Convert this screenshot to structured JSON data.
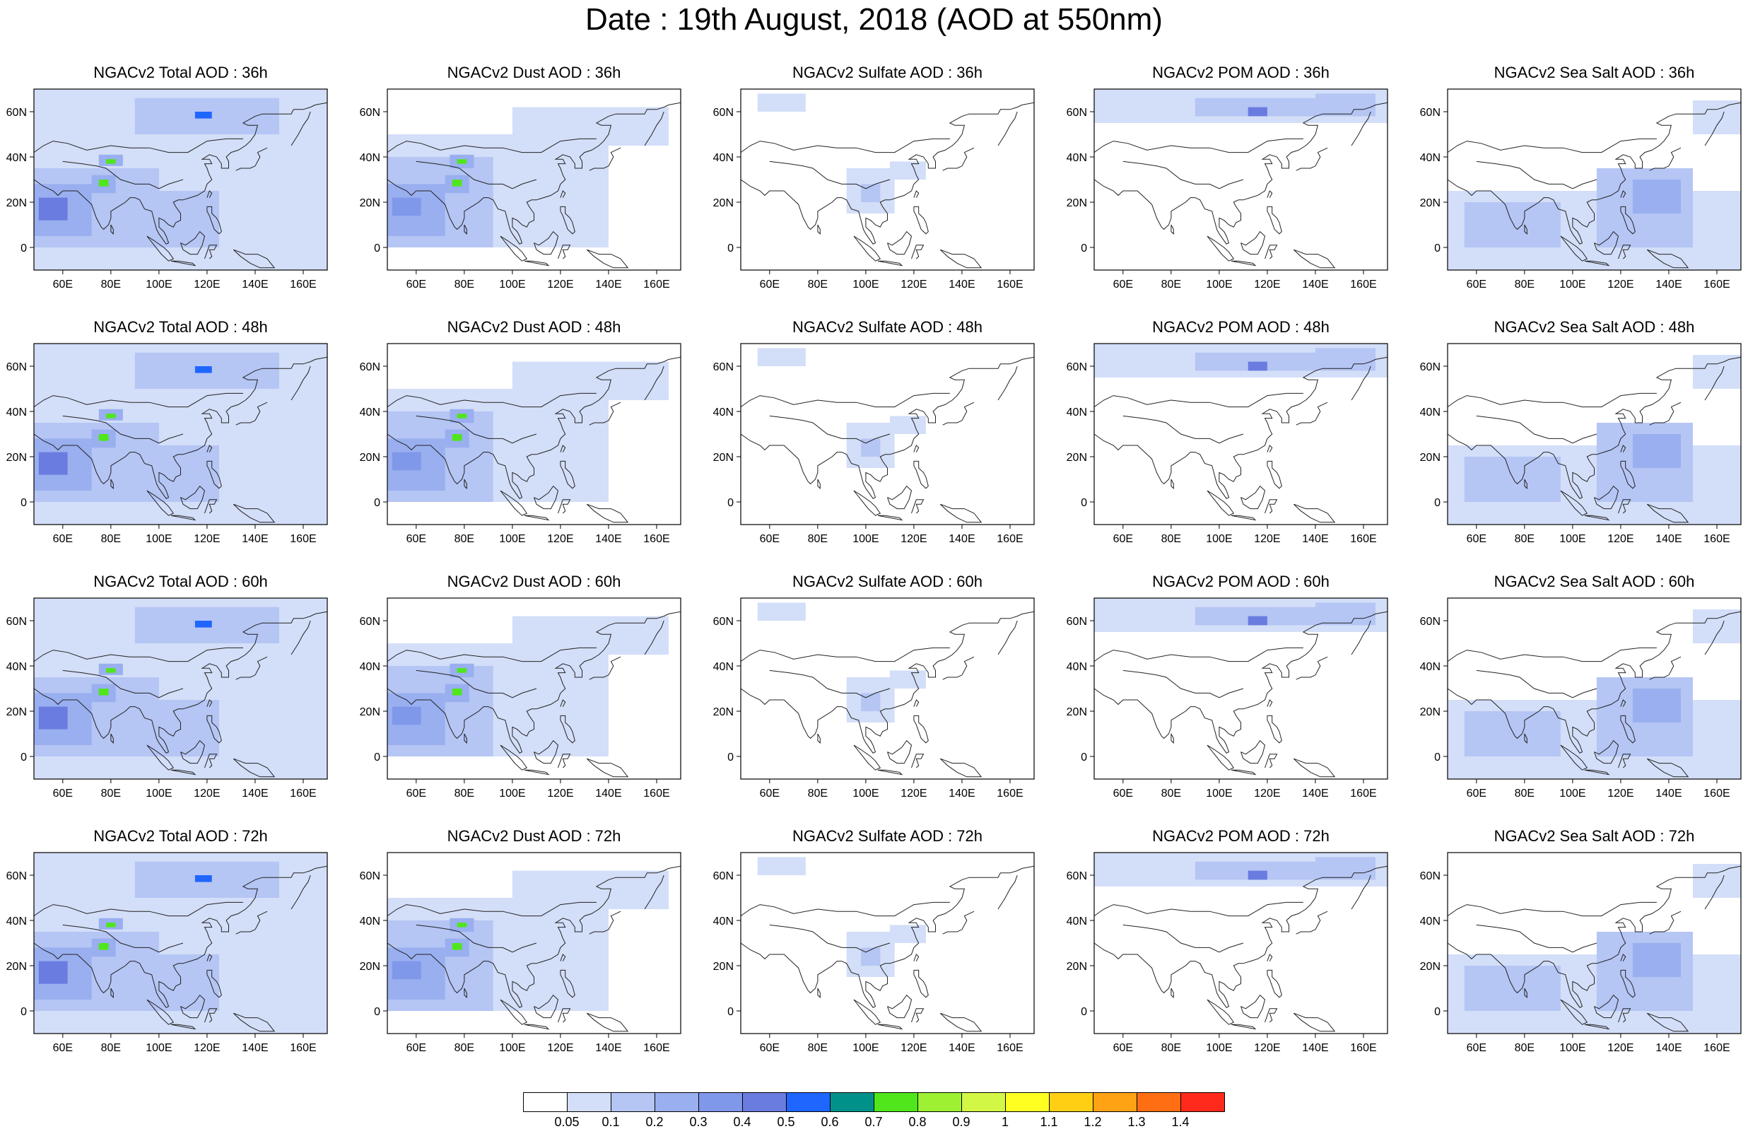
{
  "title": "Date : 19th August, 2018 (AOD at 550nm)",
  "lon_ticks": [
    "60E",
    "80E",
    "100E",
    "120E",
    "140E",
    "160E"
  ],
  "lat_ticks": [
    "60N",
    "40N",
    "20N",
    "0"
  ],
  "lon_values": [
    60,
    80,
    100,
    120,
    140,
    160
  ],
  "lat_values": [
    60,
    40,
    20,
    0
  ],
  "map_extent": {
    "lon": [
      48,
      170
    ],
    "lat": [
      -10,
      70
    ]
  },
  "colorbar": {
    "labels": [
      "0.05",
      "0.1",
      "0.2",
      "0.3",
      "0.4",
      "0.5",
      "0.6",
      "0.7",
      "0.8",
      "0.9",
      "1",
      "1.1",
      "1.2",
      "1.3",
      "1.4"
    ],
    "colors": [
      "#ffffff",
      "#d3def8",
      "#b5c5f4",
      "#99afef",
      "#8098ea",
      "#6a7ce0",
      "#1f66ff",
      "#00928a",
      "#4fe61b",
      "#9ef033",
      "#d3f745",
      "#ffff22",
      "#ffcf14",
      "#ffa315",
      "#ff6e12",
      "#ff2a1b"
    ]
  },
  "panels": [
    {
      "title": "NGACv2 Total AOD : 36h",
      "species": "total"
    },
    {
      "title": "NGACv2 Dust AOD : 36h",
      "species": "dust"
    },
    {
      "title": "NGACv2 Sulfate AOD : 36h",
      "species": "sulfate"
    },
    {
      "title": "NGACv2 POM AOD : 36h",
      "species": "pom"
    },
    {
      "title": "NGACv2 Sea Salt AOD : 36h",
      "species": "seasalt"
    },
    {
      "title": "NGACv2 Total AOD : 48h",
      "species": "total"
    },
    {
      "title": "NGACv2 Dust AOD : 48h",
      "species": "dust"
    },
    {
      "title": "NGACv2 Sulfate AOD : 48h",
      "species": "sulfate"
    },
    {
      "title": "NGACv2 POM AOD : 48h",
      "species": "pom"
    },
    {
      "title": "NGACv2 Sea Salt AOD : 48h",
      "species": "seasalt"
    },
    {
      "title": "NGACv2 Total AOD : 60h",
      "species": "total"
    },
    {
      "title": "NGACv2 Dust AOD : 60h",
      "species": "dust"
    },
    {
      "title": "NGACv2 Sulfate AOD : 60h",
      "species": "sulfate"
    },
    {
      "title": "NGACv2 POM AOD : 60h",
      "species": "pom"
    },
    {
      "title": "NGACv2 Sea Salt AOD : 60h",
      "species": "seasalt"
    },
    {
      "title": "NGACv2 Total AOD : 72h",
      "species": "total"
    },
    {
      "title": "NGACv2 Dust AOD : 72h",
      "species": "dust"
    },
    {
      "title": "NGACv2 Sulfate AOD : 72h",
      "species": "sulfate"
    },
    {
      "title": "NGACv2 POM AOD : 72h",
      "species": "pom"
    },
    {
      "title": "NGACv2 Sea Salt  AOD : 72h",
      "species": "seasalt"
    }
  ],
  "aerosol_regions": {
    "total": [
      {
        "lon": [
          48,
          170
        ],
        "lat": [
          -10,
          70
        ],
        "level": 1
      },
      {
        "lon": [
          48,
          100
        ],
        "lat": [
          0,
          35
        ],
        "level": 2
      },
      {
        "lon": [
          48,
          72
        ],
        "lat": [
          5,
          28
        ],
        "level": 3
      },
      {
        "lon": [
          50,
          62
        ],
        "lat": [
          12,
          22
        ],
        "level": 5
      },
      {
        "lon": [
          72,
          82
        ],
        "lat": [
          24,
          32
        ],
        "level": 3
      },
      {
        "lon": [
          75,
          79
        ],
        "lat": [
          27,
          30
        ],
        "level": 8
      },
      {
        "lon": [
          75,
          85
        ],
        "lat": [
          36,
          41
        ],
        "level": 3
      },
      {
        "lon": [
          78,
          82
        ],
        "lat": [
          37,
          39
        ],
        "level": 8
      },
      {
        "lon": [
          90,
          150
        ],
        "lat": [
          50,
          66
        ],
        "level": 2
      },
      {
        "lon": [
          115,
          122
        ],
        "lat": [
          57,
          60
        ],
        "level": 6
      },
      {
        "lon": [
          100,
          125
        ],
        "lat": [
          0,
          25
        ],
        "level": 2
      }
    ],
    "dust": [
      {
        "lon": [
          48,
          140
        ],
        "lat": [
          0,
          50
        ],
        "level": 1
      },
      {
        "lon": [
          48,
          92
        ],
        "lat": [
          0,
          40
        ],
        "level": 2
      },
      {
        "lon": [
          48,
          72
        ],
        "lat": [
          5,
          28
        ],
        "level": 3
      },
      {
        "lon": [
          50,
          62
        ],
        "lat": [
          14,
          22
        ],
        "level": 4
      },
      {
        "lon": [
          72,
          82
        ],
        "lat": [
          24,
          32
        ],
        "level": 3
      },
      {
        "lon": [
          75,
          79
        ],
        "lat": [
          27,
          30
        ],
        "level": 8
      },
      {
        "lon": [
          74,
          84
        ],
        "lat": [
          35,
          41
        ],
        "level": 3
      },
      {
        "lon": [
          77,
          81
        ],
        "lat": [
          37,
          39
        ],
        "level": 8
      },
      {
        "lon": [
          100,
          165
        ],
        "lat": [
          45,
          62
        ],
        "level": 1
      }
    ],
    "sulfate": [
      {
        "lon": [
          92,
          112
        ],
        "lat": [
          15,
          35
        ],
        "level": 1
      },
      {
        "lon": [
          98,
          106
        ],
        "lat": [
          20,
          28
        ],
        "level": 2
      },
      {
        "lon": [
          55,
          75
        ],
        "lat": [
          60,
          68
        ],
        "level": 1
      },
      {
        "lon": [
          110,
          125
        ],
        "lat": [
          30,
          38
        ],
        "level": 1
      }
    ],
    "pom": [
      {
        "lon": [
          48,
          170
        ],
        "lat": [
          55,
          70
        ],
        "level": 1
      },
      {
        "lon": [
          90,
          165
        ],
        "lat": [
          58,
          66
        ],
        "level": 2
      },
      {
        "lon": [
          112,
          120
        ],
        "lat": [
          58,
          62
        ],
        "level": 5
      },
      {
        "lon": [
          140,
          165
        ],
        "lat": [
          60,
          68
        ],
        "level": 2
      }
    ],
    "seasalt": [
      {
        "lon": [
          48,
          170
        ],
        "lat": [
          -10,
          25
        ],
        "level": 1
      },
      {
        "lon": [
          55,
          95
        ],
        "lat": [
          0,
          20
        ],
        "level": 2
      },
      {
        "lon": [
          110,
          150
        ],
        "lat": [
          0,
          35
        ],
        "level": 2
      },
      {
        "lon": [
          125,
          145
        ],
        "lat": [
          15,
          30
        ],
        "level": 3
      },
      {
        "lon": [
          150,
          170
        ],
        "lat": [
          50,
          65
        ],
        "level": 1
      }
    ]
  }
}
